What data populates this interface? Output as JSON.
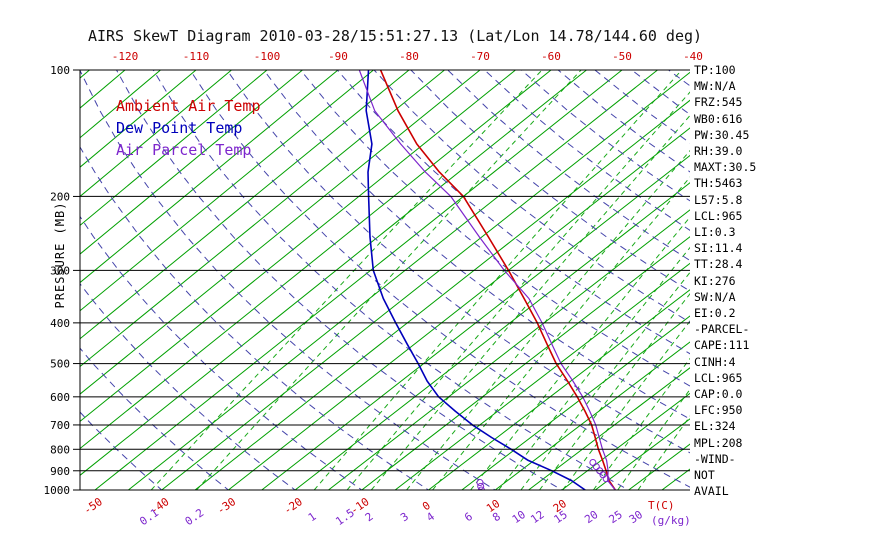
{
  "chart_data": {
    "type": "line",
    "title": "AIRS SkewT Diagram 2010-03-28/15:51:27.13 (Lat/Lon 14.78/144.60 deg)",
    "x_axis": {
      "label": "T(C)",
      "top_ticks": [
        -120,
        -110,
        -100,
        -90,
        -80,
        -70,
        -60,
        -50,
        -40
      ],
      "bottom_ticks": [
        -50,
        -40,
        -30,
        -20,
        -10,
        0,
        10,
        20
      ]
    },
    "y_axis": {
      "label": "PRESSURE (MB)",
      "scale": "log",
      "ticks": [
        100,
        200,
        300,
        400,
        500,
        600,
        700,
        800,
        900,
        1000
      ],
      "range": [
        100,
        1000
      ]
    },
    "mixing_ratio_g_kg": [
      0.1,
      0.2,
      1,
      1.5,
      2,
      3,
      4,
      6,
      8,
      10,
      12,
      15,
      20,
      25,
      30
    ],
    "mixing_ratio_units_label": "(g/kg)",
    "isotherms_c": {
      "min": -130,
      "max": 45,
      "step": 5
    },
    "dry_adiabats_c": {
      "min": -40,
      "max": 200,
      "step": 10
    },
    "series": [
      {
        "name": "Ambient Air Temp",
        "color": "#CC0000",
        "pressure_mb": [
          1000,
          950,
          900,
          850,
          800,
          750,
          700,
          650,
          600,
          550,
          500,
          450,
          400,
          350,
          300,
          250,
          200,
          175,
          150,
          125,
          100
        ],
        "temp_c": [
          28.0,
          25.2,
          22.8,
          20.2,
          17.4,
          14.6,
          11.6,
          8.0,
          4.0,
          -0.5,
          -5.5,
          -10.5,
          -16.0,
          -22.5,
          -30.0,
          -39.0,
          -50.0,
          -57.8,
          -66.0,
          -74.5,
          -84.0
        ]
      },
      {
        "name": "Dew Point Temp",
        "color": "#0000BB",
        "pressure_mb": [
          1000,
          950,
          900,
          850,
          800,
          750,
          700,
          650,
          600,
          550,
          500,
          450,
          400,
          350,
          300,
          250,
          200,
          175,
          150,
          125,
          100
        ],
        "temp_c": [
          23.5,
          19.6,
          14.7,
          9.1,
          4.4,
          -0.8,
          -6.1,
          -11.2,
          -16.5,
          -21.2,
          -25.8,
          -31.0,
          -36.7,
          -43.0,
          -49.6,
          -56.1,
          -63.6,
          -68.0,
          -72.4,
          -79.0,
          -85.7
        ]
      },
      {
        "name": "Air Parcel Temp",
        "color": "#7D26CD",
        "marker_pressures_mb": [
          1000,
          980,
          960,
          940,
          920,
          900,
          880,
          860
        ],
        "pressure_mb": [
          1000,
          950,
          900,
          850,
          800,
          750,
          700,
          650,
          600,
          550,
          500,
          450,
          400,
          350,
          300,
          250,
          200,
          175,
          150,
          125,
          100
        ],
        "temp_c": [
          28.0,
          25.0,
          23.1,
          20.8,
          18.0,
          15.2,
          12.2,
          8.7,
          4.8,
          0.3,
          -4.8,
          -9.8,
          -15.3,
          -21.8,
          -30.6,
          -40.3,
          -51.8,
          -59.8,
          -68.3,
          -77.8,
          -87.0
        ]
      }
    ],
    "style": {
      "isotherm_color": "#00A000",
      "mixing_color": "#00A000",
      "adiabat_color": "#4444AA",
      "grid_color": "#000000",
      "axis_red": "#CC0000",
      "mixing_label_color": "#7D26CD",
      "title_color": "#111111",
      "background": "#FFFFFF"
    }
  },
  "side_panel": {
    "lines": [
      "TP:100",
      "MW:N/A",
      "FRZ:545",
      "WB0:616",
      "PW:30.45",
      "RH:39.0",
      "MAXT:30.5",
      "TH:5463",
      "L57:5.8",
      "LCL:965",
      "LI:0.3",
      "SI:11.4",
      "TT:28.4",
      "KI:276",
      "SW:N/A",
      "EI:0.2",
      "-PARCEL-",
      "CAPE:111",
      "CINH:4",
      "LCL:965",
      "CAP:0.0",
      "LFC:950",
      "EL:324",
      "MPL:208",
      "-WIND-",
      "NOT",
      "AVAIL"
    ]
  }
}
